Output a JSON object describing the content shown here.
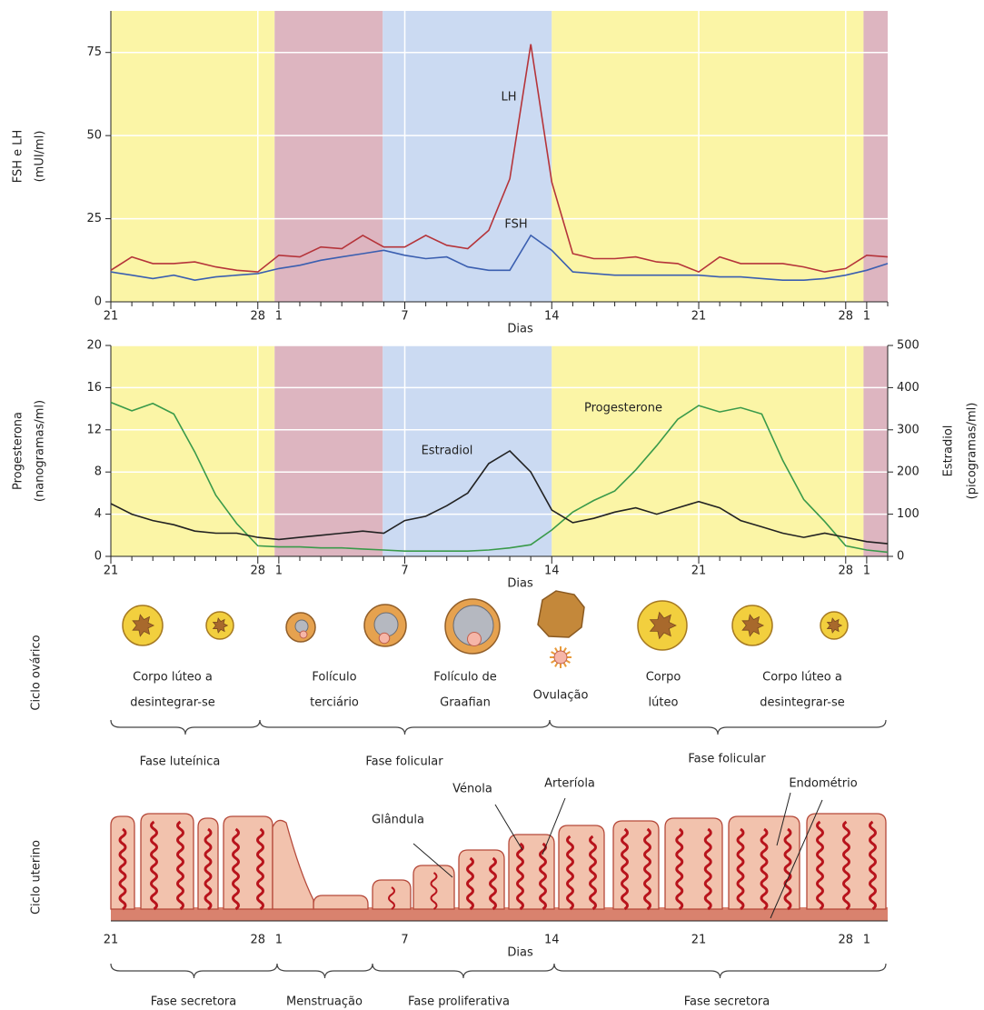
{
  "chart_data": [
    {
      "type": "line",
      "ylabel": [
        "FSH e LH",
        "(mUI/ml)"
      ],
      "xlabel": "Dias",
      "categories": [
        "21",
        null,
        null,
        null,
        null,
        null,
        null,
        "28",
        "1",
        null,
        null,
        null,
        null,
        null,
        "7",
        null,
        null,
        null,
        null,
        null,
        null,
        "14",
        null,
        null,
        null,
        null,
        null,
        null,
        "21",
        null,
        null,
        null,
        null,
        null,
        null,
        "28",
        "1",
        null
      ],
      "ylim": [
        0,
        87.5
      ],
      "yticks": [
        0,
        25,
        50,
        75
      ],
      "grid": true,
      "series": [
        {
          "name": "LH",
          "color": "#b5343a",
          "values": [
            9.5,
            13.5,
            11.5,
            11.5,
            12,
            10.5,
            9.5,
            9,
            14,
            13.5,
            16.5,
            16,
            20,
            16.5,
            16.5,
            20,
            17,
            16,
            21.5,
            37,
            77.5,
            36,
            14.5,
            13,
            13,
            13.5,
            12,
            11.5,
            9,
            13.5,
            11.5,
            11.5,
            11.5,
            10.5,
            9,
            10,
            14,
            13.5
          ]
        },
        {
          "name": "FSH",
          "color": "#3b5fb0",
          "values": [
            9,
            8,
            7,
            8,
            6.5,
            7.5,
            8,
            8.5,
            10,
            11,
            12.5,
            13.5,
            14.5,
            15.5,
            14,
            13,
            13.5,
            10.5,
            9.5,
            9.5,
            20,
            15.5,
            9,
            8.5,
            8,
            8,
            8,
            8,
            8,
            7.5,
            7.5,
            7,
            6.5,
            6.5,
            7,
            8,
            9.5,
            11.5
          ]
        }
      ]
    },
    {
      "type": "line",
      "ylabel": [
        "Progesterona",
        "(nanogramas/ml)"
      ],
      "y2label": [
        "Estradiol",
        "(picogramas/ml)"
      ],
      "xlabel": "Dias",
      "categories": [
        "21",
        null,
        null,
        null,
        null,
        null,
        null,
        "28",
        "1",
        null,
        null,
        null,
        null,
        null,
        "7",
        null,
        null,
        null,
        null,
        null,
        null,
        "14",
        null,
        null,
        null,
        null,
        null,
        null,
        "21",
        null,
        null,
        null,
        null,
        null,
        null,
        "28",
        "1",
        null
      ],
      "ylim": [
        0,
        20
      ],
      "yticks": [
        0,
        4,
        8,
        12,
        16,
        20
      ],
      "y2lim": [
        0,
        500
      ],
      "y2ticks": [
        0,
        100,
        200,
        300,
        400,
        500
      ],
      "grid": true,
      "series": [
        {
          "name": "Progesterone",
          "color": "#3a9a4a",
          "values": [
            14.6,
            13.8,
            14.5,
            13.5,
            9.9,
            5.8,
            3.1,
            1,
            0.9,
            0.9,
            0.8,
            0.8,
            0.7,
            0.6,
            0.5,
            0.5,
            0.5,
            0.5,
            0.6,
            0.8,
            1.1,
            2.5,
            4.2,
            5.3,
            6.2,
            8.2,
            10.5,
            13,
            14.3,
            13.7,
            14.1,
            13.5,
            9.1,
            5.4,
            3.3,
            1,
            0.6,
            0.4
          ]
        },
        {
          "name": "Estradiol",
          "color": "#222222",
          "axis": "y2",
          "values": [
            125,
            100,
            85,
            75,
            60,
            55,
            55,
            45,
            40,
            45,
            50,
            55,
            60,
            55,
            85,
            95,
            120,
            150,
            220,
            250,
            200,
            110,
            80,
            90,
            105,
            115,
            100,
            115,
            130,
            115,
            85,
            70,
            55,
            45,
            55,
            45,
            35,
            30
          ]
        }
      ]
    }
  ],
  "ovarian_cycle": {
    "title": "Ciclo ovárico",
    "stages": [
      [
        "Corpo lúteo a",
        "desintegrar-se"
      ],
      [
        "Folículo",
        "terciário"
      ],
      [
        "Folículo de",
        "Graafian"
      ],
      [
        "Ovulação"
      ],
      [
        "Corpo",
        "lúteo"
      ],
      [
        "Corpo lúteo a",
        "desintegrar-se"
      ]
    ],
    "phases": [
      "Fase luteínica",
      "Fase folicular",
      "Fase folicular"
    ]
  },
  "uterine_cycle": {
    "title": "Ciclo uterino",
    "labels": [
      "Glândula",
      "Vénola",
      "Arteríola",
      "Endométrio"
    ],
    "ticks": [
      "21",
      "28",
      "1",
      "7",
      "14",
      "21",
      "28",
      "1"
    ],
    "xlabel": "Dias",
    "phases": [
      "Fase secretora",
      "Menstruação",
      "Fase proliferativa",
      "Fase secretora"
    ]
  }
}
